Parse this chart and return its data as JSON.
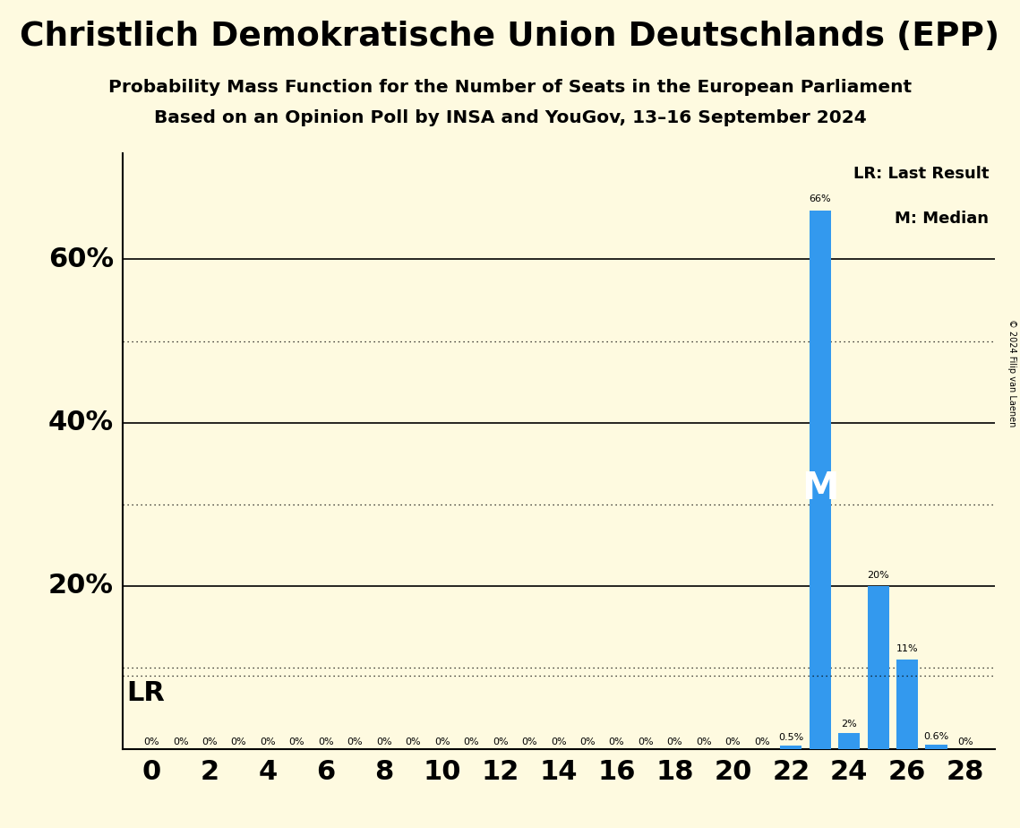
{
  "title": "Christlich Demokratische Union Deutschlands (EPP)",
  "subtitle1": "Probability Mass Function for the Number of Seats in the European Parliament",
  "subtitle2": "Based on an Opinion Poll by INSA and YouGov, 13–16 September 2024",
  "copyright": "© 2024 Filip van Laenen",
  "background_color": "#FEFAE0",
  "bar_color": "#3399EE",
  "seats": [
    0,
    1,
    2,
    3,
    4,
    5,
    6,
    7,
    8,
    9,
    10,
    11,
    12,
    13,
    14,
    15,
    16,
    17,
    18,
    19,
    20,
    21,
    22,
    23,
    24,
    25,
    26,
    27,
    28
  ],
  "probabilities": [
    0,
    0,
    0,
    0,
    0,
    0,
    0,
    0,
    0,
    0,
    0,
    0,
    0,
    0,
    0,
    0,
    0,
    0,
    0,
    0,
    0,
    0,
    0.5,
    66,
    2,
    20,
    11,
    0.6,
    0
  ],
  "labels": [
    "0%",
    "0%",
    "0%",
    "0%",
    "0%",
    "0%",
    "0%",
    "0%",
    "0%",
    "0%",
    "0%",
    "0%",
    "0%",
    "0%",
    "0%",
    "0%",
    "0%",
    "0%",
    "0%",
    "0%",
    "0%",
    "0%",
    "0.5%",
    "66%",
    "2%",
    "20%",
    "11%",
    "0.6%",
    "0%"
  ],
  "median_seat": 23,
  "lr_seat": 23,
  "lr_label": "LR",
  "solid_yticks": [
    0,
    20,
    40,
    60
  ],
  "dotted_yticks": [
    10,
    30,
    50
  ],
  "lr_line_value": 9.0,
  "xlim": [
    -1,
    29
  ],
  "ylim": [
    0,
    73
  ],
  "xtick_positions": [
    0,
    2,
    4,
    6,
    8,
    10,
    12,
    14,
    16,
    18,
    20,
    22,
    24,
    26,
    28
  ],
  "legend_lr_text": "LR: Last Result",
  "legend_m_text": "M: Median"
}
